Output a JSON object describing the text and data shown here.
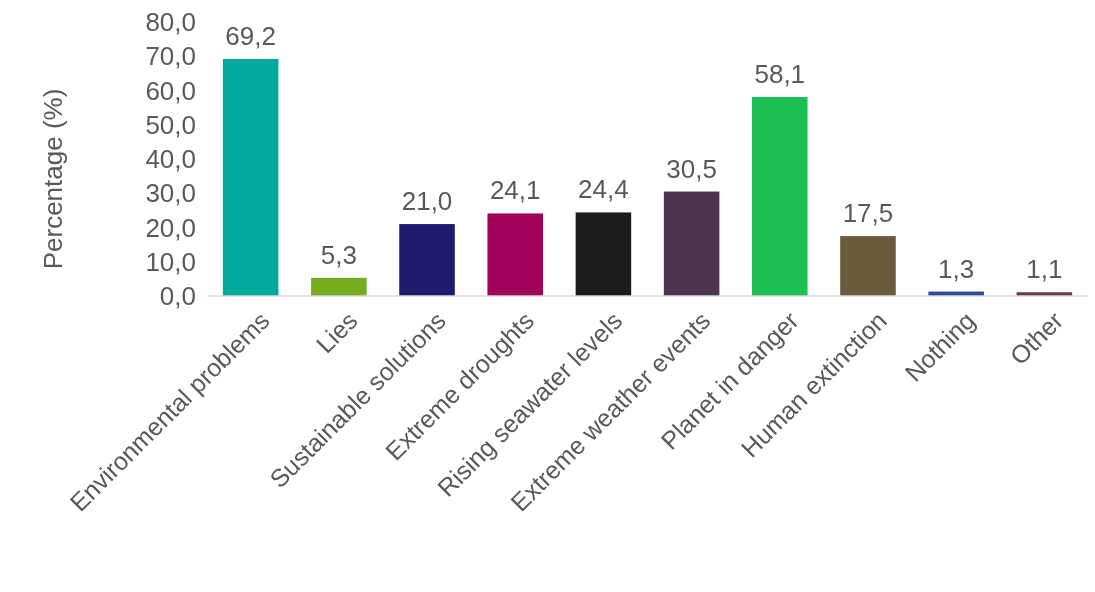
{
  "chart_data": {
    "type": "bar",
    "ylabel": "Percentage (%)",
    "categories": [
      "Environmental problems",
      "Lies",
      "Sustainable solutions",
      "Extreme droughts",
      "Rising seawater levels",
      "Extreme weather events",
      "Planet in danger",
      "Human extinction",
      "Nothing",
      "Other"
    ],
    "values": [
      69.2,
      5.3,
      21.0,
      24.1,
      24.4,
      30.5,
      58.1,
      17.5,
      1.3,
      1.1
    ],
    "colors": [
      "#00a99d",
      "#76ad1f",
      "#1f1a6b",
      "#a0005a",
      "#1c1c1c",
      "#4f3450",
      "#1dbf55",
      "#6b5a3e",
      "#2e4a9a",
      "#6b3a4a"
    ],
    "value_labels": [
      "69,2",
      "5,3",
      "21,0",
      "24,1",
      "24,4",
      "30,5",
      "58,1",
      "17,5",
      "1,3",
      "1,1"
    ],
    "ylim": [
      0,
      80
    ],
    "yticks": [
      {
        "value": 0,
        "label": "0,0"
      },
      {
        "value": 10,
        "label": "10,0"
      },
      {
        "value": 20,
        "label": "20,0"
      },
      {
        "value": 30,
        "label": "30,0"
      },
      {
        "value": 40,
        "label": "40,0"
      },
      {
        "value": 50,
        "label": "50,0"
      },
      {
        "value": 60,
        "label": "60,0"
      },
      {
        "value": 70,
        "label": "70,0"
      },
      {
        "value": 80,
        "label": "80,0"
      }
    ],
    "grid": false
  }
}
